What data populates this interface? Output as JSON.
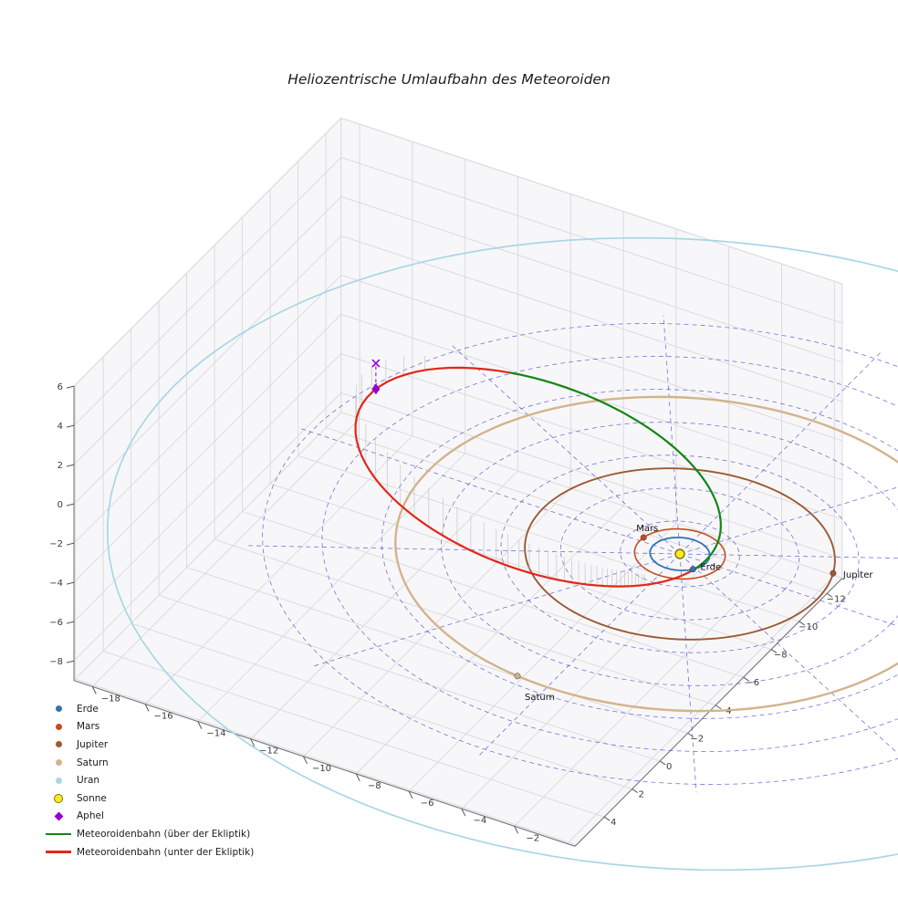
{
  "title": "Heliozentrische Umlaufbahn des Meteoroiden",
  "chart_data": {
    "type": "3d_orbit_plot",
    "title": "Heliozentrische Umlaufbahn des Meteoroiden",
    "axes": {
      "x_tick_labels": [
        -18,
        -16,
        -14,
        -12,
        -10,
        -8,
        -6,
        -4,
        -2
      ],
      "y_tick_labels": [
        -12,
        -10,
        -8,
        -6,
        -4,
        -2,
        0,
        2,
        4
      ],
      "z_tick_labels": [
        6,
        4,
        2,
        0,
        -2,
        -4,
        -6,
        -8
      ],
      "grid": true,
      "x_range_au": [
        -19,
        0.3
      ],
      "y_range_au": [
        -13.1,
        6.1
      ],
      "z_range_au": [
        -9,
        6
      ]
    },
    "ecliptic_grid": {
      "ring_radii_au": [
        2,
        4,
        6,
        8,
        10,
        12,
        14
      ],
      "num_rays": 12,
      "ray_length_au": 14.5,
      "color": "#3c3ccc"
    },
    "planets": [
      {
        "name": "Erde",
        "orbit_radius_au": 1.0,
        "color": "#3173b5",
        "line_width": 1.8,
        "marker_angle_deg": 36,
        "show_label": true
      },
      {
        "name": "Mars",
        "orbit_radius_au": 1.52,
        "color": "#c64b20",
        "line_width": 1.6,
        "marker_angle_deg": 189,
        "show_label": true
      },
      {
        "name": "Jupiter",
        "orbit_radius_au": 5.2,
        "color": "#9c5a33",
        "line_width": 1.9,
        "marker_angle_deg": -19,
        "show_label": true
      },
      {
        "name": "Saturn",
        "orbit_radius_au": 9.54,
        "color": "#d2b48c",
        "line_width": 2.4,
        "marker_angle_deg": 97,
        "show_label": true
      },
      {
        "name": "Uran",
        "orbit_radius_au": 19.2,
        "color": "#a9d6e5",
        "line_width": 1.7,
        "marker_angle_deg": null,
        "show_label": false
      }
    ],
    "sun": {
      "name": "Sonne",
      "color": "#ffe926",
      "edge_color": "#7d7400"
    },
    "meteoroid_orbit": {
      "semi_major_axis_au": 7.95,
      "eccentricity": 0.874,
      "perihelion_au": 1.0,
      "aphelion_au": 14.9,
      "sin_inclination": 0.34,
      "perihelion_angle_deg": 19,
      "node_true_anomaly_deg": 15,
      "above_color": "#128712",
      "below_color": "#e42618",
      "above_label": "Meteoroidenbahn (über der Ekliptik)",
      "below_label": "Meteoroidenbahn (unter der Ekliptik)"
    },
    "aphel_marker": {
      "label": "Aphel",
      "color": "#9400d3",
      "projection_x_marker": true
    }
  },
  "legend": {
    "items": [
      {
        "label": "Erde",
        "type": "dot",
        "color": "#3173b5"
      },
      {
        "label": "Mars",
        "type": "dot",
        "color": "#c64b20"
      },
      {
        "label": "Jupiter",
        "type": "dot",
        "color": "#9c5a33"
      },
      {
        "label": "Saturn",
        "type": "dot",
        "color": "#d2b48c"
      },
      {
        "label": "Uran",
        "type": "dot",
        "color": "#a9d6e5"
      },
      {
        "label": "Sonne",
        "type": "dot_large",
        "color": "#ffe926",
        "edge": "#7d7400"
      },
      {
        "label": "Aphel",
        "type": "diamond",
        "color": "#9400d3"
      },
      {
        "label": "Meteoroidenbahn (über der Ekliptik)",
        "type": "line",
        "color": "#128712"
      },
      {
        "label": "Meteoroidenbahn (unter der Ekliptik)",
        "type": "line",
        "color": "#e42618"
      }
    ]
  }
}
